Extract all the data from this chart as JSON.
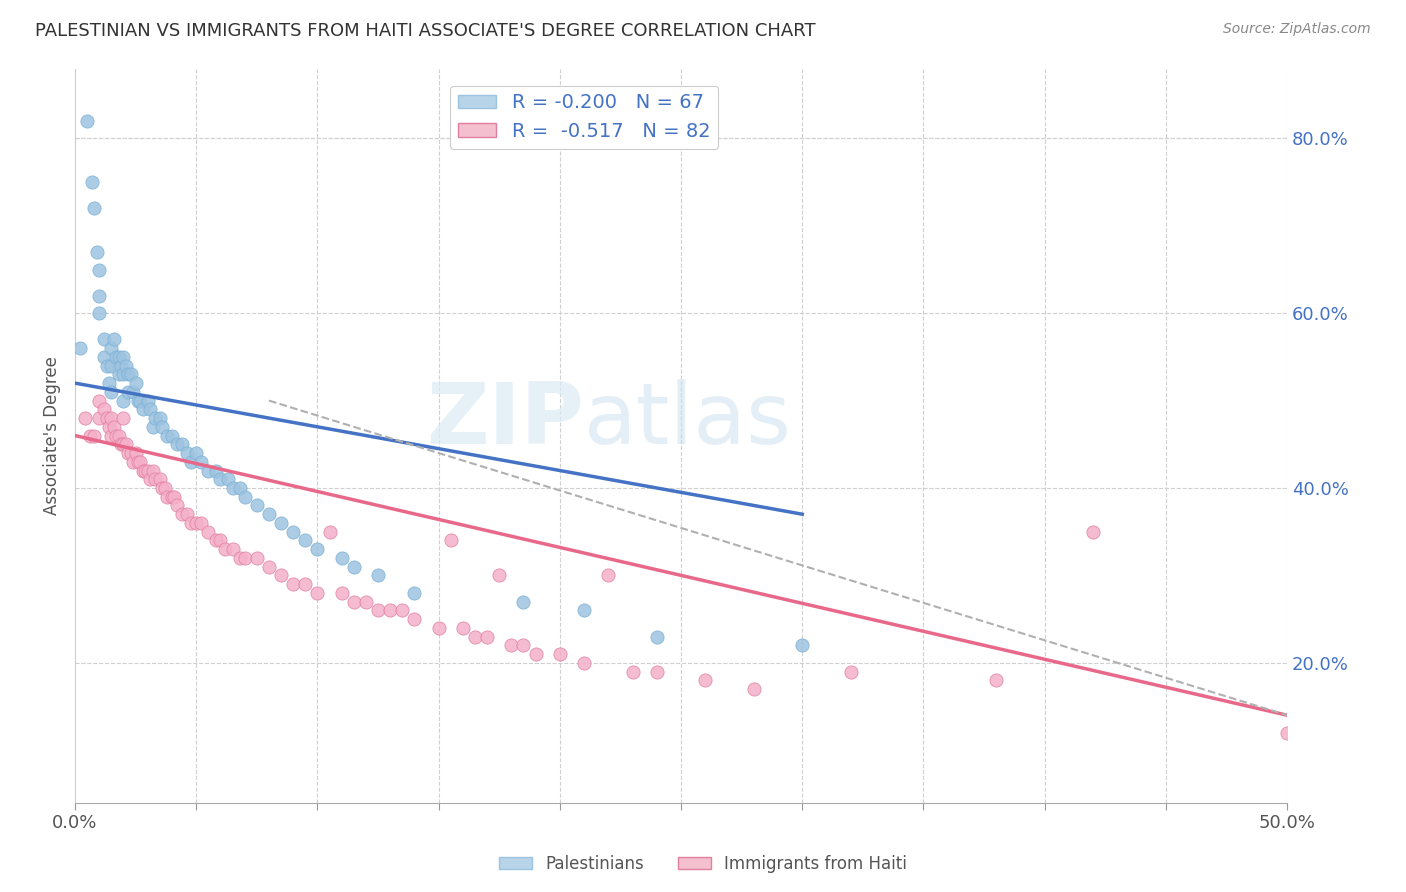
{
  "title": "PALESTINIAN VS IMMIGRANTS FROM HAITI ASSOCIATE'S DEGREE CORRELATION CHART",
  "source": "Source: ZipAtlas.com",
  "ylabel": "Associate's Degree",
  "ylabel_right_ticks": [
    "80.0%",
    "60.0%",
    "40.0%",
    "20.0%"
  ],
  "ylabel_right_vals": [
    0.8,
    0.6,
    0.4,
    0.2
  ],
  "x_min": 0.0,
  "x_max": 0.5,
  "y_min": 0.04,
  "y_max": 0.88,
  "watermark_zip": "ZIP",
  "watermark_atlas": "atlas",
  "palestinians_color": "#9dc3e0",
  "palestinians_color_edge": "#7aafd4",
  "haiti_color": "#f4b0c8",
  "haiti_color_edge": "#e080a0",
  "trend_blue": "#4472c4",
  "trend_pink": "#e8688a",
  "trend_gray": "#b0b0b0",
  "blue_trend_x": [
    0.0,
    0.3
  ],
  "blue_trend_y": [
    0.52,
    0.37
  ],
  "pink_trend_x": [
    0.0,
    0.5
  ],
  "pink_trend_y": [
    0.46,
    0.14
  ],
  "gray_trend_x": [
    0.08,
    0.5
  ],
  "gray_trend_y": [
    0.5,
    0.14
  ],
  "palestinians_x": [
    0.002,
    0.005,
    0.007,
    0.008,
    0.009,
    0.01,
    0.01,
    0.01,
    0.012,
    0.012,
    0.013,
    0.014,
    0.015,
    0.015,
    0.015,
    0.016,
    0.017,
    0.018,
    0.018,
    0.019,
    0.02,
    0.02,
    0.02,
    0.021,
    0.022,
    0.022,
    0.023,
    0.024,
    0.025,
    0.026,
    0.027,
    0.028,
    0.03,
    0.031,
    0.032,
    0.033,
    0.035,
    0.036,
    0.038,
    0.04,
    0.042,
    0.044,
    0.046,
    0.048,
    0.05,
    0.052,
    0.055,
    0.058,
    0.06,
    0.063,
    0.065,
    0.068,
    0.07,
    0.075,
    0.08,
    0.085,
    0.09,
    0.095,
    0.1,
    0.11,
    0.115,
    0.125,
    0.14,
    0.185,
    0.21,
    0.24,
    0.3
  ],
  "palestinians_y": [
    0.56,
    0.82,
    0.75,
    0.72,
    0.67,
    0.65,
    0.62,
    0.6,
    0.57,
    0.55,
    0.54,
    0.52,
    0.56,
    0.54,
    0.51,
    0.57,
    0.55,
    0.55,
    0.53,
    0.54,
    0.55,
    0.53,
    0.5,
    0.54,
    0.53,
    0.51,
    0.53,
    0.51,
    0.52,
    0.5,
    0.5,
    0.49,
    0.5,
    0.49,
    0.47,
    0.48,
    0.48,
    0.47,
    0.46,
    0.46,
    0.45,
    0.45,
    0.44,
    0.43,
    0.44,
    0.43,
    0.42,
    0.42,
    0.41,
    0.41,
    0.4,
    0.4,
    0.39,
    0.38,
    0.37,
    0.36,
    0.35,
    0.34,
    0.33,
    0.32,
    0.31,
    0.3,
    0.28,
    0.27,
    0.26,
    0.23,
    0.22
  ],
  "haiti_x": [
    0.004,
    0.006,
    0.008,
    0.01,
    0.01,
    0.012,
    0.013,
    0.014,
    0.015,
    0.015,
    0.016,
    0.017,
    0.018,
    0.019,
    0.02,
    0.02,
    0.021,
    0.022,
    0.023,
    0.024,
    0.025,
    0.026,
    0.027,
    0.028,
    0.029,
    0.03,
    0.031,
    0.032,
    0.033,
    0.035,
    0.036,
    0.037,
    0.038,
    0.04,
    0.041,
    0.042,
    0.044,
    0.046,
    0.048,
    0.05,
    0.052,
    0.055,
    0.058,
    0.06,
    0.062,
    0.065,
    0.068,
    0.07,
    0.075,
    0.08,
    0.085,
    0.09,
    0.095,
    0.1,
    0.105,
    0.11,
    0.115,
    0.12,
    0.125,
    0.13,
    0.135,
    0.14,
    0.15,
    0.155,
    0.16,
    0.165,
    0.17,
    0.175,
    0.18,
    0.185,
    0.19,
    0.2,
    0.21,
    0.22,
    0.23,
    0.24,
    0.26,
    0.28,
    0.32,
    0.38,
    0.42,
    0.5
  ],
  "haiti_y": [
    0.48,
    0.46,
    0.46,
    0.5,
    0.48,
    0.49,
    0.48,
    0.47,
    0.48,
    0.46,
    0.47,
    0.46,
    0.46,
    0.45,
    0.48,
    0.45,
    0.45,
    0.44,
    0.44,
    0.43,
    0.44,
    0.43,
    0.43,
    0.42,
    0.42,
    0.42,
    0.41,
    0.42,
    0.41,
    0.41,
    0.4,
    0.4,
    0.39,
    0.39,
    0.39,
    0.38,
    0.37,
    0.37,
    0.36,
    0.36,
    0.36,
    0.35,
    0.34,
    0.34,
    0.33,
    0.33,
    0.32,
    0.32,
    0.32,
    0.31,
    0.3,
    0.29,
    0.29,
    0.28,
    0.35,
    0.28,
    0.27,
    0.27,
    0.26,
    0.26,
    0.26,
    0.25,
    0.24,
    0.34,
    0.24,
    0.23,
    0.23,
    0.3,
    0.22,
    0.22,
    0.21,
    0.21,
    0.2,
    0.3,
    0.19,
    0.19,
    0.18,
    0.17,
    0.19,
    0.18,
    0.35,
    0.12
  ]
}
